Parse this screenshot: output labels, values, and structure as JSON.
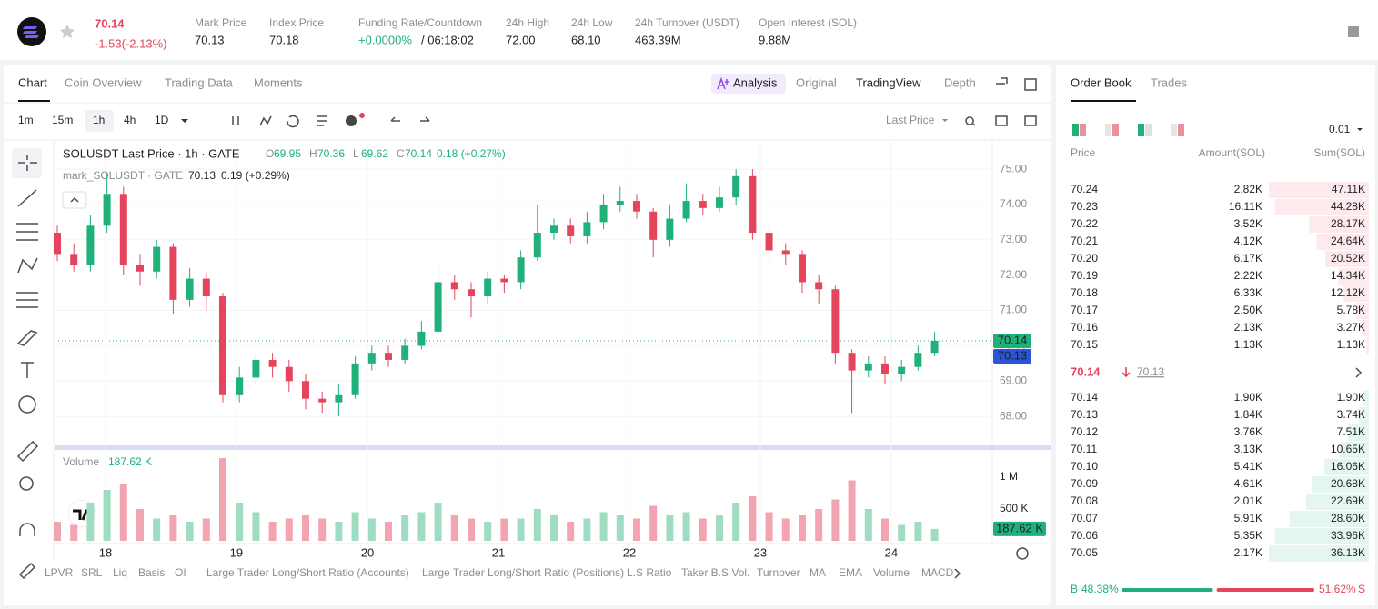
{
  "header": {
    "price": "70.14",
    "change": "-1.53(-2.13%)",
    "stats": [
      {
        "label": "Mark Price",
        "value": "70.13"
      },
      {
        "label": "Index Price",
        "value": "70.18"
      },
      {
        "label": "Funding Rate/Countdown",
        "value": "+0.0000%",
        "value2": "/ 06:18:02"
      },
      {
        "label": "24h High",
        "value": "72.00"
      },
      {
        "label": "24h Low",
        "value": "68.10"
      },
      {
        "label": "24h Turnover (USDT)",
        "value": "463.39M"
      },
      {
        "label": "Open Interest (SOL)",
        "value": "9.88M"
      }
    ]
  },
  "tabs": [
    "Chart",
    "Coin Overview",
    "Trading Data",
    "Moments"
  ],
  "views": [
    "Analysis",
    "Original",
    "TradingView",
    "Depth"
  ],
  "intervals": [
    "1m",
    "15m",
    "1h",
    "4h",
    "1D"
  ],
  "price_type": "Last Price",
  "indicators": [
    "LPVR",
    "SRL",
    "Liq",
    "Basis",
    "OI",
    "Large Trader Long/Short Ratio (Accounts)",
    "Large Trader Long/Short Ratio (Positions)",
    "L.S Ratio",
    "Taker B.S Vol.",
    "Turnover",
    "MA",
    "EMA",
    "Volume",
    "MACD"
  ],
  "chart_data": {
    "type": "candlestick",
    "title": "SOLUSDT Last Price · 1h · GATE",
    "ohlc_labels": [
      [
        "O",
        "69.95"
      ],
      [
        "H",
        "70.36"
      ],
      [
        "L",
        "69.62"
      ],
      [
        "C",
        "70.14"
      ]
    ],
    "change": "0.18 (+0.27%)",
    "mark_title": "mark_SOLUSDT · GATE",
    "mark_value": "70.13",
    "mark_change": "0.19 (+0.29%)",
    "open": [
      73.2,
      72.6,
      72.3,
      73.4,
      74.3,
      72.3,
      72.1,
      72.8,
      71.3,
      71.9,
      71.4,
      68.6,
      69.1,
      69.6,
      69.4,
      69.0,
      68.5,
      68.4,
      68.6,
      69.5,
      69.8,
      69.6,
      70.0,
      70.4,
      71.8,
      71.6,
      71.4,
      71.9,
      71.8,
      72.5,
      73.2,
      73.4,
      73.1,
      73.5,
      74.0,
      74.1,
      73.8,
      73.0,
      73.6,
      74.1,
      73.9,
      74.2,
      74.8,
      73.2,
      72.7,
      72.6,
      71.8,
      71.6,
      69.8,
      69.3,
      69.5,
      69.2,
      69.4,
      69.8
    ],
    "high": [
      73.4,
      72.9,
      73.7,
      74.9,
      74.5,
      72.6,
      73.0,
      72.9,
      72.2,
      72.1,
      71.5,
      69.4,
      69.8,
      69.8,
      69.6,
      69.2,
      68.7,
      68.9,
      69.7,
      70.0,
      70.0,
      70.2,
      70.7,
      72.4,
      72.0,
      71.8,
      72.1,
      72.0,
      72.7,
      74.0,
      73.6,
      73.6,
      73.8,
      74.3,
      74.5,
      74.3,
      73.9,
      74.0,
      74.6,
      74.3,
      74.5,
      75.0,
      75.0,
      73.4,
      72.9,
      72.7,
      72.0,
      71.7,
      69.9,
      69.7,
      69.7,
      69.6,
      70.0,
      70.4
    ],
    "low": [
      72.4,
      72.1,
      72.1,
      73.2,
      72.0,
      71.7,
      71.9,
      70.9,
      71.1,
      71.0,
      68.4,
      68.4,
      68.9,
      69.1,
      68.7,
      68.2,
      68.1,
      68.0,
      68.5,
      69.3,
      69.4,
      69.5,
      69.9,
      70.3,
      71.3,
      70.8,
      71.2,
      71.5,
      71.6,
      72.4,
      73.0,
      72.9,
      72.9,
      73.3,
      73.8,
      73.6,
      72.5,
      72.8,
      73.5,
      73.7,
      73.8,
      74.0,
      73.0,
      72.4,
      72.3,
      71.5,
      71.2,
      69.5,
      68.1,
      69.1,
      68.9,
      69.0,
      69.3,
      69.7
    ],
    "close": [
      72.6,
      72.3,
      73.4,
      74.3,
      72.3,
      72.1,
      72.8,
      71.3,
      71.9,
      71.4,
      68.6,
      69.1,
      69.6,
      69.4,
      69.0,
      68.5,
      68.4,
      68.6,
      69.5,
      69.8,
      69.6,
      70.0,
      70.4,
      71.8,
      71.6,
      71.4,
      71.9,
      71.8,
      72.5,
      73.2,
      73.4,
      73.1,
      73.5,
      74.0,
      74.1,
      73.8,
      73.0,
      73.6,
      74.1,
      73.9,
      74.2,
      74.8,
      73.2,
      72.7,
      72.6,
      71.8,
      71.6,
      69.8,
      69.3,
      69.5,
      69.2,
      69.4,
      69.8,
      70.14
    ],
    "up_color": "#20b07a",
    "down_color": "#e5455c",
    "ylim": [
      67.18,
      75.8
    ],
    "yticks": [
      {
        "value": 68,
        "label": "68.00"
      },
      {
        "value": 69,
        "label": "69.00"
      },
      {
        "value": 70,
        "label": "70.00"
      },
      {
        "value": 71,
        "label": "71.00"
      },
      {
        "value": 72,
        "label": "72.00"
      },
      {
        "value": 73,
        "label": "73.00"
      },
      {
        "value": 74,
        "label": "74.00"
      },
      {
        "value": 75,
        "label": "75.00"
      }
    ],
    "xlim": [
      -0.165,
      56.43
    ],
    "xticks": [
      {
        "value": 2.91,
        "label": "18"
      },
      {
        "value": 10.82,
        "label": "19"
      },
      {
        "value": 18.74,
        "label": "20"
      },
      {
        "value": 26.65,
        "label": "21"
      },
      {
        "value": 34.56,
        "label": "22"
      },
      {
        "value": 42.47,
        "label": "23"
      },
      {
        "value": 50.38,
        "label": "24"
      }
    ],
    "last": 70.14,
    "mark": 70.13,
    "volume": {
      "label": "Volume",
      "values": [
        300,
        250,
        600,
        800,
        900,
        500,
        350,
        400,
        300,
        350,
        1300,
        600,
        450,
        300,
        350,
        400,
        350,
        300,
        450,
        350,
        300,
        400,
        450,
        600,
        400,
        350,
        300,
        350,
        350,
        500,
        400,
        300,
        350,
        450,
        400,
        350,
        550,
        400,
        450,
        350,
        400,
        600,
        700,
        450,
        350,
        400,
        500,
        650,
        950,
        500,
        350,
        250,
        300,
        187.62
      ],
      "ylim": [
        0,
        1357
      ],
      "yticks": [
        {
          "value": 500,
          "label": "500 K"
        },
        {
          "value": 1000,
          "label": "1 M"
        }
      ],
      "current": 187.62,
      "current_label": "187.62 K"
    }
  },
  "order_book": {
    "tabs": [
      "Order Book",
      "Trades"
    ],
    "precision": "0.01",
    "columns": [
      "Price",
      "Amount(SOL)",
      "Sum(SOL)"
    ],
    "asks": [
      {
        "price": "70.24",
        "amount": "2.82K",
        "sum": 47.11,
        "sum_label": "47.11K"
      },
      {
        "price": "70.23",
        "amount": "16.11K",
        "sum": 44.28,
        "sum_label": "44.28K"
      },
      {
        "price": "70.22",
        "amount": "3.52K",
        "sum": 28.17,
        "sum_label": "28.17K"
      },
      {
        "price": "70.21",
        "amount": "4.12K",
        "sum": 24.64,
        "sum_label": "24.64K"
      },
      {
        "price": "70.20",
        "amount": "6.17K",
        "sum": 20.52,
        "sum_label": "20.52K"
      },
      {
        "price": "70.19",
        "amount": "2.22K",
        "sum": 14.34,
        "sum_label": "14.34K"
      },
      {
        "price": "70.18",
        "amount": "6.33K",
        "sum": 12.12,
        "sum_label": "12.12K"
      },
      {
        "price": "70.17",
        "amount": "2.50K",
        "sum": 5.78,
        "sum_label": "5.78K"
      },
      {
        "price": "70.16",
        "amount": "2.13K",
        "sum": 3.27,
        "sum_label": "3.27K"
      },
      {
        "price": "70.15",
        "amount": "1.13K",
        "sum": 1.13,
        "sum_label": "1.13K"
      }
    ],
    "mid": {
      "price": "70.14",
      "mark": "70.13"
    },
    "bids": [
      {
        "price": "70.14",
        "amount": "1.90K",
        "sum": 1.9,
        "sum_label": "1.90K"
      },
      {
        "price": "70.13",
        "amount": "1.84K",
        "sum": 3.74,
        "sum_label": "3.74K"
      },
      {
        "price": "70.12",
        "amount": "3.76K",
        "sum": 7.51,
        "sum_label": "7.51K"
      },
      {
        "price": "70.11",
        "amount": "3.13K",
        "sum": 10.65,
        "sum_label": "10.65K"
      },
      {
        "price": "70.10",
        "amount": "5.41K",
        "sum": 16.06,
        "sum_label": "16.06K"
      },
      {
        "price": "70.09",
        "amount": "4.61K",
        "sum": 20.68,
        "sum_label": "20.68K"
      },
      {
        "price": "70.08",
        "amount": "2.01K",
        "sum": 22.69,
        "sum_label": "22.69K"
      },
      {
        "price": "70.07",
        "amount": "5.91K",
        "sum": 28.6,
        "sum_label": "28.60K"
      },
      {
        "price": "70.06",
        "amount": "5.35K",
        "sum": 33.96,
        "sum_label": "33.96K"
      },
      {
        "price": "70.05",
        "amount": "2.17K",
        "sum": 36.13,
        "sum_label": "36.13K"
      }
    ],
    "ratio": {
      "buy_label": "B",
      "buy": 48.38,
      "buy_value_label": "48.38%",
      "sell": 51.62,
      "sell_value_label": "51.62%",
      "sell_label": "S"
    }
  }
}
